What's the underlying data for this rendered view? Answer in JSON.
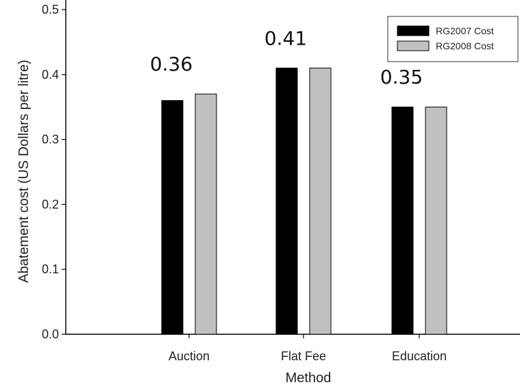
{
  "chart_data": {
    "type": "bar",
    "title": "",
    "xlabel": "Method",
    "ylabel": "Abatement cost (US Dollars per litre)",
    "categories": [
      "Auction",
      "Flat Fee",
      "Education"
    ],
    "series": [
      {
        "name": "RG2007 Cost",
        "values": [
          0.36,
          0.41,
          0.35
        ],
        "color": "#000000"
      },
      {
        "name": "RG2008 Cost",
        "values": [
          0.37,
          0.41,
          0.35
        ],
        "color": "#c0c0c0"
      }
    ],
    "data_labels": [
      "0.36",
      "0.41",
      "0.35"
    ],
    "ylim": [
      0,
      0.5
    ],
    "yticks": [
      "0.0",
      "0.1",
      "0.2",
      "0.3",
      "0.4",
      "0.5"
    ],
    "grid": false,
    "legend_position": "top-right"
  }
}
